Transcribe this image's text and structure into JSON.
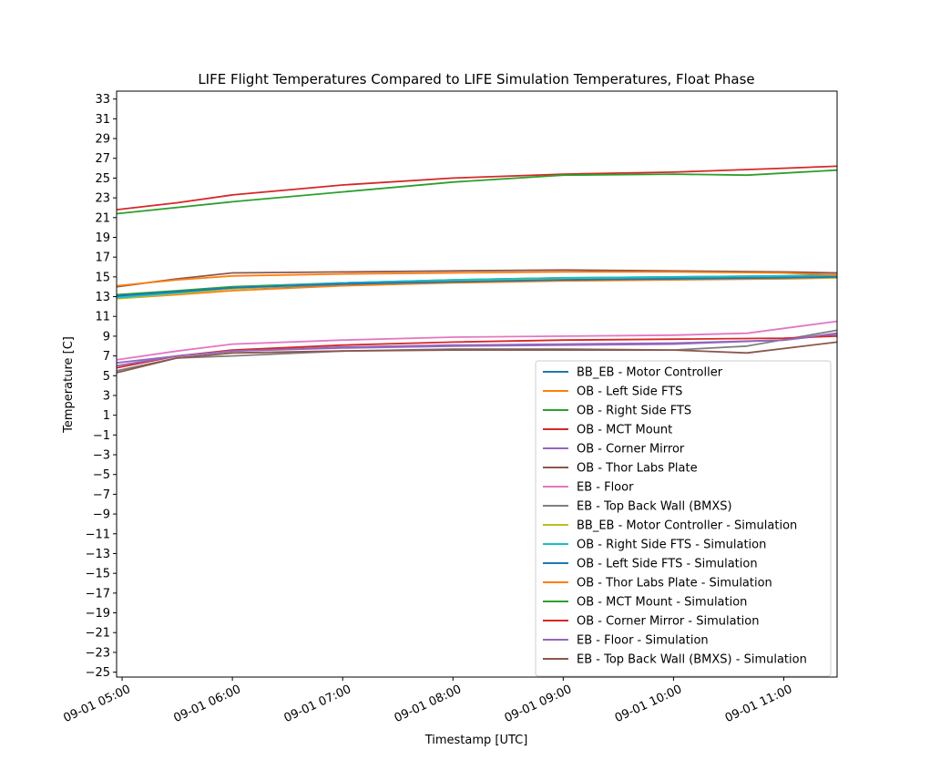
{
  "chart_data": {
    "type": "line",
    "title": "LIFE Flight Temperatures Compared to LIFE Simulation Temperatures, Float Phase",
    "xlabel": "Timestamp [UTC]",
    "ylabel": "Temperature [C]",
    "x_ticks": [
      "2023-09-01T05:00",
      "2023-09-01T06:00",
      "2023-09-01T07:00",
      "2023-09-01T08:00",
      "2023-09-01T09:00",
      "2023-09-01T10:00",
      "2023-09-01T11:00"
    ],
    "x_tick_labels": [
      "09-01 05:00",
      "09-01 06:00",
      "09-01 07:00",
      "09-01 08:00",
      "09-01 09:00",
      "09-01 10:00",
      "09-01 11:00"
    ],
    "xlim": [
      "2023-09-01T04:57",
      "2023-09-01T11:29"
    ],
    "ylim": [
      -25.5,
      33.8
    ],
    "y_ticks": [
      -25,
      -23,
      -21,
      -19,
      -17,
      -15,
      -13,
      -11,
      -9,
      -7,
      -5,
      -3,
      -1,
      1,
      3,
      5,
      7,
      9,
      11,
      13,
      15,
      17,
      19,
      21,
      23,
      25,
      27,
      29,
      31,
      33
    ],
    "grid": false,
    "legend_position": "lower-right",
    "series": [
      {
        "name": "BB_EB - Motor Controller",
        "color": "#1f77b4",
        "x": [
          "2023-09-01T04:57",
          "2023-09-01T05:30",
          "2023-09-01T06:00",
          "2023-09-01T07:00",
          "2023-09-01T08:00",
          "2023-09-01T09:00",
          "2023-09-01T10:00",
          "2023-09-01T11:00",
          "2023-09-01T11:29"
        ],
        "y": [
          13.0,
          13.4,
          13.8,
          14.2,
          14.5,
          14.7,
          14.9,
          15.0,
          15.1
        ]
      },
      {
        "name": "OB - Left Side FTS",
        "color": "#ff7f0e",
        "x": [
          "2023-09-01T04:57",
          "2023-09-01T05:30",
          "2023-09-01T06:00",
          "2023-09-01T07:00",
          "2023-09-01T08:00",
          "2023-09-01T09:00",
          "2023-09-01T10:00",
          "2023-09-01T11:00",
          "2023-09-01T11:29"
        ],
        "y": [
          12.8,
          13.2,
          13.6,
          14.1,
          14.4,
          14.6,
          14.7,
          14.8,
          14.9
        ]
      },
      {
        "name": "OB - Right Side FTS",
        "color": "#2ca02c",
        "x": [
          "2023-09-01T04:57",
          "2023-09-01T05:30",
          "2023-09-01T06:00",
          "2023-09-01T07:00",
          "2023-09-01T08:00",
          "2023-09-01T09:00",
          "2023-09-01T10:00",
          "2023-09-01T11:00",
          "2023-09-01T11:29"
        ],
        "y": [
          13.2,
          13.6,
          14.0,
          14.4,
          14.7,
          14.9,
          15.0,
          15.1,
          15.2
        ]
      },
      {
        "name": "OB - MCT Mount",
        "color": "#d62728",
        "x": [
          "2023-09-01T04:57",
          "2023-09-01T05:30",
          "2023-09-01T06:00",
          "2023-09-01T07:00",
          "2023-09-01T08:00",
          "2023-09-01T09:00",
          "2023-09-01T10:00",
          "2023-09-01T11:00",
          "2023-09-01T11:29"
        ],
        "y": [
          21.8,
          22.5,
          23.3,
          24.3,
          25.0,
          25.4,
          25.6,
          26.0,
          26.2
        ]
      },
      {
        "name": "OB - Corner Mirror",
        "color": "#9467bd",
        "x": [
          "2023-09-01T04:57",
          "2023-09-01T05:30",
          "2023-09-01T06:00",
          "2023-09-01T07:00",
          "2023-09-01T08:00",
          "2023-09-01T09:00",
          "2023-09-01T10:00",
          "2023-09-01T11:00",
          "2023-09-01T11:29"
        ],
        "y": [
          6.3,
          7.0,
          7.5,
          7.9,
          8.1,
          8.2,
          8.3,
          8.6,
          9.2
        ]
      },
      {
        "name": "OB - Thor Labs Plate",
        "color": "#8c564b",
        "x": [
          "2023-09-01T04:57",
          "2023-09-01T05:30",
          "2023-09-01T06:00",
          "2023-09-01T07:00",
          "2023-09-01T08:00",
          "2023-09-01T09:00",
          "2023-09-01T10:00",
          "2023-09-01T11:00",
          "2023-09-01T11:29"
        ],
        "y": [
          14.0,
          14.8,
          15.4,
          15.5,
          15.6,
          15.7,
          15.6,
          15.5,
          15.4
        ]
      },
      {
        "name": "EB - Floor",
        "color": "#e377c2",
        "x": [
          "2023-09-01T04:57",
          "2023-09-01T05:30",
          "2023-09-01T06:00",
          "2023-09-01T07:00",
          "2023-09-01T08:00",
          "2023-09-01T09:00",
          "2023-09-01T10:00",
          "2023-09-01T10:40",
          "2023-09-01T11:29"
        ],
        "y": [
          6.6,
          7.5,
          8.2,
          8.6,
          8.9,
          9.0,
          9.1,
          9.3,
          10.5
        ]
      },
      {
        "name": "EB - Top Back Wall (BMXS)",
        "color": "#7f7f7f",
        "x": [
          "2023-09-01T04:57",
          "2023-09-01T05:30",
          "2023-09-01T06:00",
          "2023-09-01T07:00",
          "2023-09-01T08:00",
          "2023-09-01T09:00",
          "2023-09-01T10:00",
          "2023-09-01T10:40",
          "2023-09-01T11:29"
        ],
        "y": [
          5.5,
          6.8,
          7.0,
          7.5,
          7.7,
          7.7,
          7.6,
          8.0,
          9.6
        ]
      },
      {
        "name": "BB_EB - Motor Controller - Simulation",
        "color": "#bcbd22",
        "x": [
          "2023-09-01T04:57",
          "2023-09-01T05:30",
          "2023-09-01T06:00",
          "2023-09-01T07:00",
          "2023-09-01T08:00",
          "2023-09-01T09:00",
          "2023-09-01T10:00",
          "2023-09-01T11:00",
          "2023-09-01T11:29"
        ],
        "y": [
          12.8,
          13.3,
          13.8,
          14.3,
          14.6,
          14.8,
          14.8,
          14.9,
          14.9
        ]
      },
      {
        "name": "OB - Right Side FTS - Simulation",
        "color": "#17becf",
        "x": [
          "2023-09-01T04:57",
          "2023-09-01T05:30",
          "2023-09-01T06:00",
          "2023-09-01T07:00",
          "2023-09-01T08:00",
          "2023-09-01T09:00",
          "2023-09-01T10:00",
          "2023-09-01T11:00",
          "2023-09-01T11:29"
        ],
        "y": [
          12.9,
          13.4,
          13.9,
          14.4,
          14.7,
          14.9,
          15.0,
          15.1,
          15.1
        ]
      },
      {
        "name": "OB - Left Side FTS - Simulation",
        "color": "#1f77b4",
        "x": [
          "2023-09-01T04:57",
          "2023-09-01T05:30",
          "2023-09-01T06:00",
          "2023-09-01T07:00",
          "2023-09-01T08:00",
          "2023-09-01T09:00",
          "2023-09-01T10:00",
          "2023-09-01T11:00",
          "2023-09-01T11:29"
        ],
        "y": [
          13.1,
          13.5,
          13.9,
          14.3,
          14.5,
          14.7,
          14.8,
          14.9,
          15.0
        ]
      },
      {
        "name": "OB - Thor Labs Plate - Simulation",
        "color": "#ff7f0e",
        "x": [
          "2023-09-01T04:57",
          "2023-09-01T05:30",
          "2023-09-01T06:00",
          "2023-09-01T07:00",
          "2023-09-01T08:00",
          "2023-09-01T09:00",
          "2023-09-01T10:00",
          "2023-09-01T11:00",
          "2023-09-01T11:29"
        ],
        "y": [
          14.1,
          14.7,
          15.1,
          15.3,
          15.4,
          15.5,
          15.5,
          15.4,
          15.2
        ]
      },
      {
        "name": "OB - MCT Mount - Simulation",
        "color": "#2ca02c",
        "x": [
          "2023-09-01T04:57",
          "2023-09-01T06:00",
          "2023-09-01T07:00",
          "2023-09-01T08:00",
          "2023-09-01T09:00",
          "2023-09-01T10:00",
          "2023-09-01T10:40",
          "2023-09-01T11:29"
        ],
        "y": [
          21.4,
          22.6,
          23.6,
          24.6,
          25.3,
          25.4,
          25.3,
          25.8
        ]
      },
      {
        "name": "OB - Corner Mirror - Simulation",
        "color": "#d62728",
        "x": [
          "2023-09-01T04:57",
          "2023-09-01T05:30",
          "2023-09-01T06:00",
          "2023-09-01T07:00",
          "2023-09-01T08:00",
          "2023-09-01T09:00",
          "2023-09-01T10:00",
          "2023-09-01T11:00",
          "2023-09-01T11:29"
        ],
        "y": [
          5.8,
          7.0,
          7.6,
          8.1,
          8.4,
          8.6,
          8.7,
          8.8,
          9.0
        ]
      },
      {
        "name": "EB - Floor - Simulation",
        "color": "#9467bd",
        "x": [
          "2023-09-01T04:57",
          "2023-09-01T05:30",
          "2023-09-01T06:00",
          "2023-09-01T07:00",
          "2023-09-01T08:00",
          "2023-09-01T09:00",
          "2023-09-01T10:00",
          "2023-09-01T11:00",
          "2023-09-01T11:29"
        ],
        "y": [
          6.0,
          7.0,
          7.5,
          7.8,
          8.0,
          8.1,
          8.2,
          8.6,
          9.3
        ]
      },
      {
        "name": "EB - Top Back Wall (BMXS) - Simulation",
        "color": "#8c564b",
        "x": [
          "2023-09-01T04:57",
          "2023-09-01T05:30",
          "2023-09-01T06:00",
          "2023-09-01T07:00",
          "2023-09-01T08:00",
          "2023-09-01T09:00",
          "2023-09-01T10:00",
          "2023-09-01T10:40",
          "2023-09-01T11:29"
        ],
        "y": [
          5.3,
          6.8,
          7.3,
          7.5,
          7.6,
          7.6,
          7.6,
          7.3,
          8.4
        ]
      }
    ]
  }
}
